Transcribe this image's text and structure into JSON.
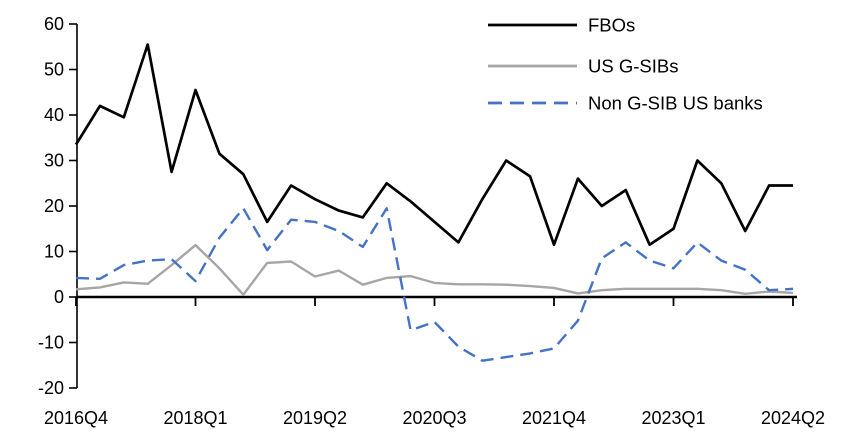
{
  "chart_data": {
    "type": "line",
    "title": "",
    "xlabel": "",
    "ylabel": "",
    "ylim": [
      -20,
      60
    ],
    "ytick_step": 10,
    "y_tick_labels": [
      "60",
      "50",
      "40",
      "30",
      "20",
      "10",
      "0",
      "-10",
      "-20"
    ],
    "grid": false,
    "legend_position": "top-right",
    "x_categories": [
      "2016Q4",
      "2017Q1",
      "2017Q2",
      "2017Q3",
      "2017Q4",
      "2018Q1",
      "2018Q2",
      "2018Q3",
      "2018Q4",
      "2019Q1",
      "2019Q2",
      "2019Q3",
      "2019Q4",
      "2020Q1",
      "2020Q2",
      "2020Q3",
      "2020Q4",
      "2021Q1",
      "2021Q2",
      "2021Q3",
      "2021Q4",
      "2022Q1",
      "2022Q2",
      "2022Q3",
      "2022Q4",
      "2023Q1",
      "2023Q2",
      "2023Q3",
      "2023Q4",
      "2024Q1",
      "2024Q2"
    ],
    "x_axis_tick_labels": [
      "2016Q4",
      "2018Q1",
      "2019Q2",
      "2020Q3",
      "2021Q4",
      "2023Q1",
      "2024Q2"
    ],
    "series": [
      {
        "name": "FBOs",
        "color": "#000000",
        "style": "solid",
        "values": [
          33.5,
          42,
          39.5,
          55.5,
          27.5,
          45.5,
          31.5,
          27,
          16.5,
          24.5,
          21.5,
          19,
          17.5,
          25,
          21,
          16.5,
          12,
          21.5,
          30,
          26.5,
          11.5,
          26,
          20,
          23.5,
          11.5,
          15,
          30,
          25,
          14.5,
          24.5,
          24.5
        ]
      },
      {
        "name": "US G-SIBs",
        "color": "#a6a6a6",
        "style": "solid",
        "values": [
          1.7,
          2.1,
          3.2,
          2.9,
          7,
          11.4,
          6.3,
          0.5,
          7.5,
          7.8,
          4.5,
          5.8,
          2.7,
          4.2,
          4.6,
          3.1,
          2.8,
          2.8,
          2.7,
          2.4,
          2,
          0.8,
          1.5,
          1.8,
          1.8,
          1.8,
          1.8,
          1.5,
          0.7,
          1.2,
          0.9
        ]
      },
      {
        "name": "Non G-SIB US banks",
        "color": "#4472c4",
        "style": "dashed",
        "values": [
          4.2,
          4,
          7,
          8,
          8.3,
          3.5,
          13,
          19.5,
          10.3,
          17,
          16.5,
          14.5,
          11,
          19.5,
          -7.3,
          -5.5,
          -10.9,
          -14,
          -13.2,
          -12.4,
          -11.3,
          -5.2,
          8.5,
          12,
          8,
          6.3,
          12,
          8,
          6,
          1.5,
          1.8
        ]
      }
    ]
  }
}
